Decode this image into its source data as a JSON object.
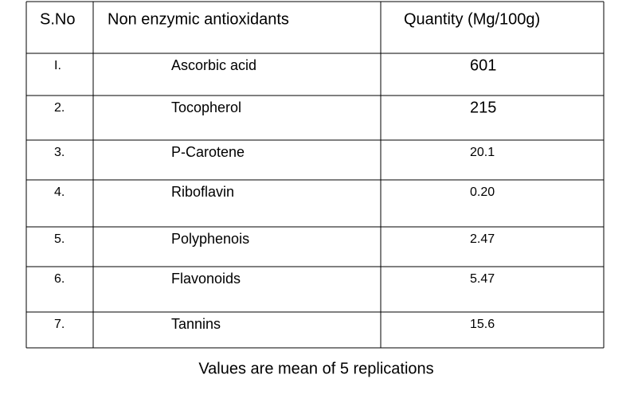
{
  "table": {
    "header": [
      "S.No",
      "Non enzymic antioxidants",
      "Quantity (Mg/100g)"
    ],
    "rows": [
      [
        "I.",
        "Ascorbic acid",
        "601"
      ],
      [
        "2.",
        "Tocopherol",
        "215"
      ],
      [
        "3.",
        "P-Carotene",
        "20.1"
      ],
      [
        "4.",
        "Riboflavin",
        "0.20"
      ],
      [
        "5.",
        "Polyphenois",
        "2.47"
      ],
      [
        "6.",
        "Flavonoids",
        "5.47"
      ],
      [
        "7.",
        "Tannins",
        "15.6"
      ]
    ]
  },
  "caption": "Values are mean of 5 replications"
}
